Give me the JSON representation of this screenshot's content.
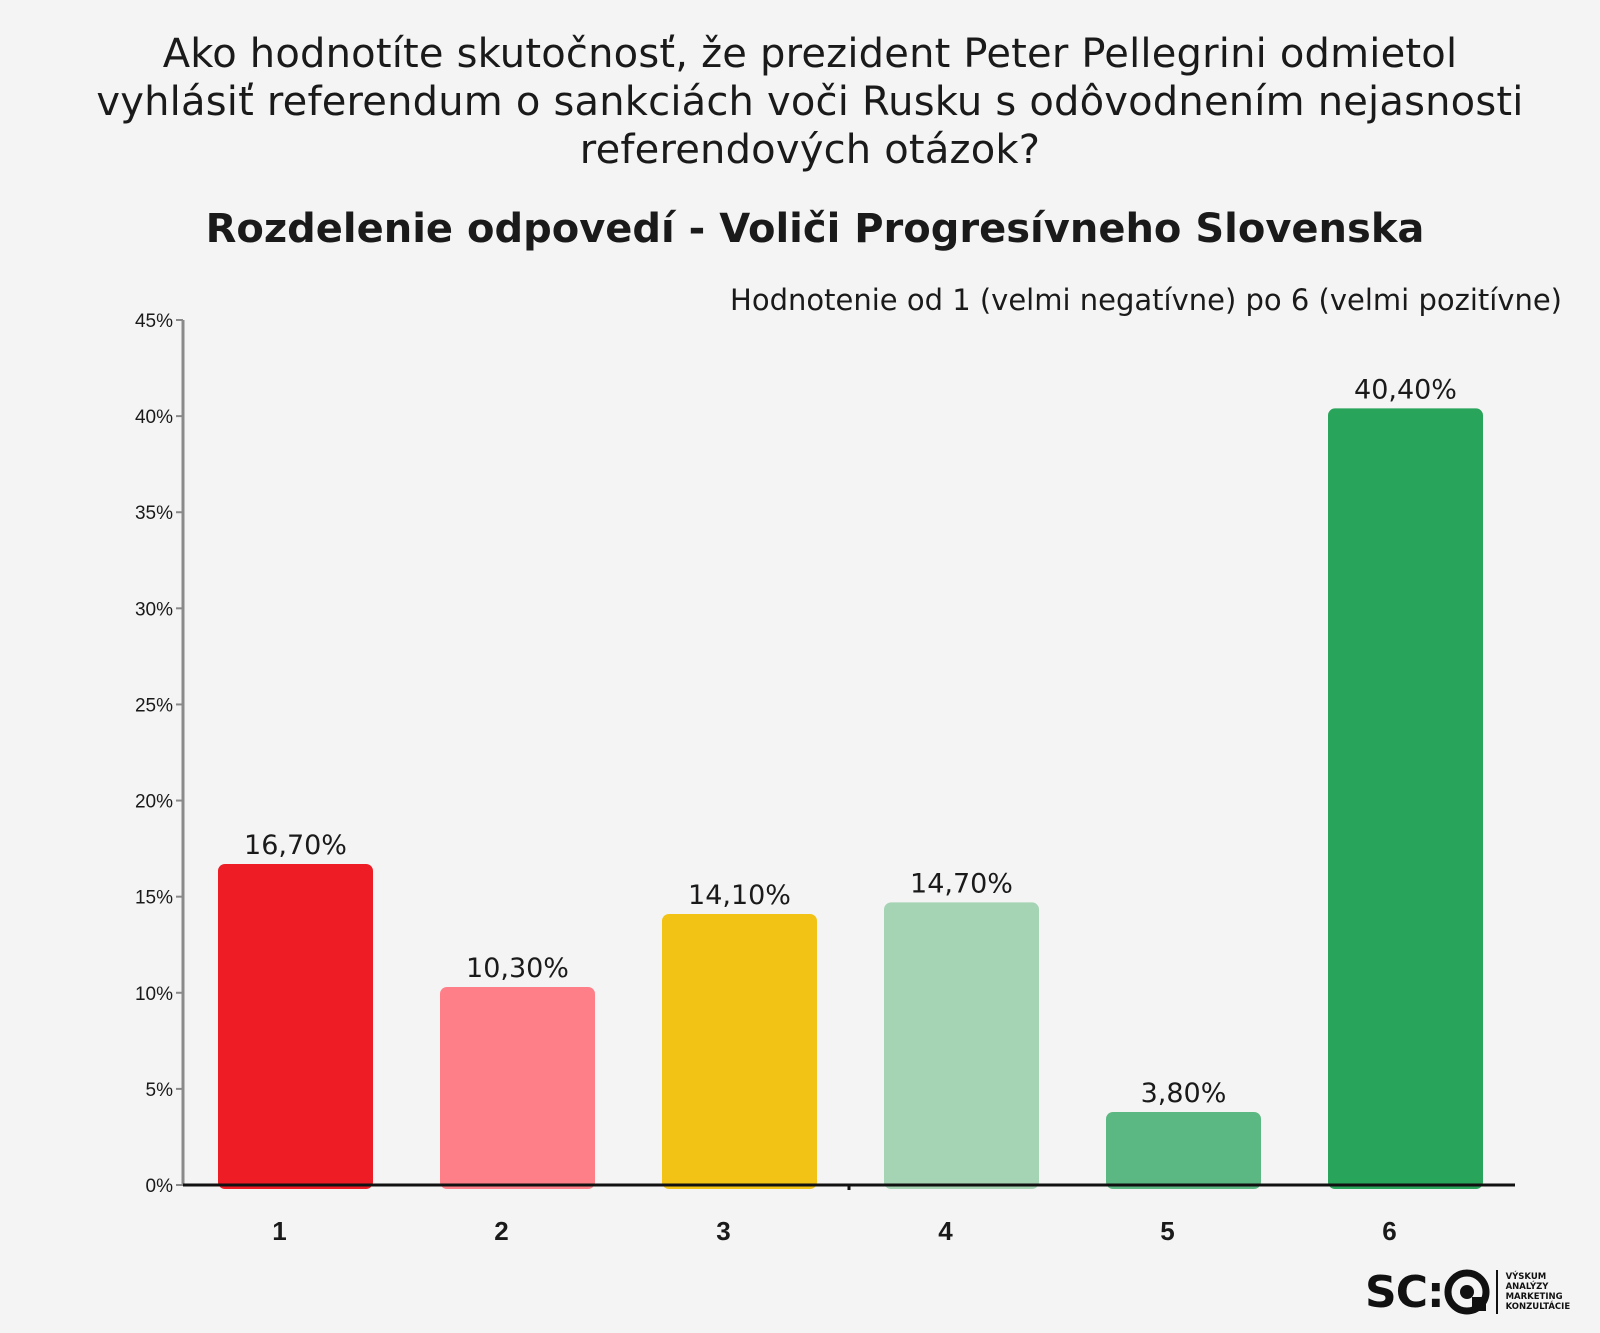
{
  "question_lines": [
    "Ako hodnotíte skutočnosť, že prezident Peter Pellegrini odmietol",
    "vyhlásiť referendum o sankciách voči Rusku s odôvodnením nejasnosti",
    "referendových otázok?"
  ],
  "subtitle": "Rozdelenie odpovedí - Voliči Progresívneho Slovenska",
  "scale_note": "Hodnotenie  od 1 (velmi negatívne) po 6 (velmi pozitívne)",
  "chart_data": {
    "type": "bar",
    "categories": [
      "1",
      "2",
      "3",
      "4",
      "5",
      "6"
    ],
    "values": [
      16.7,
      10.3,
      14.1,
      14.7,
      3.8,
      40.4
    ],
    "value_labels": [
      "16,70%",
      "10,30%",
      "14,10%",
      "14,70%",
      "3,80%",
      "40,40%"
    ],
    "colors": [
      "#ee1c25",
      "#ff7f88",
      "#f2c314",
      "#a5d4b4",
      "#5cb882",
      "#28a55a"
    ],
    "ylim": [
      0,
      45
    ],
    "yticks": [
      0,
      5,
      10,
      15,
      20,
      25,
      30,
      35,
      40,
      45
    ],
    "ytick_labels": [
      "0%",
      "5%",
      "10%",
      "15%",
      "20%",
      "25%",
      "30%",
      "35%",
      "40%",
      "45%"
    ],
    "grid": false,
    "legend": "none"
  },
  "logo": {
    "text": "SC:",
    "tags": [
      "VÝSKUM",
      "ANALÝZY",
      "MARKETING",
      "KONZULTÁCIE"
    ]
  }
}
